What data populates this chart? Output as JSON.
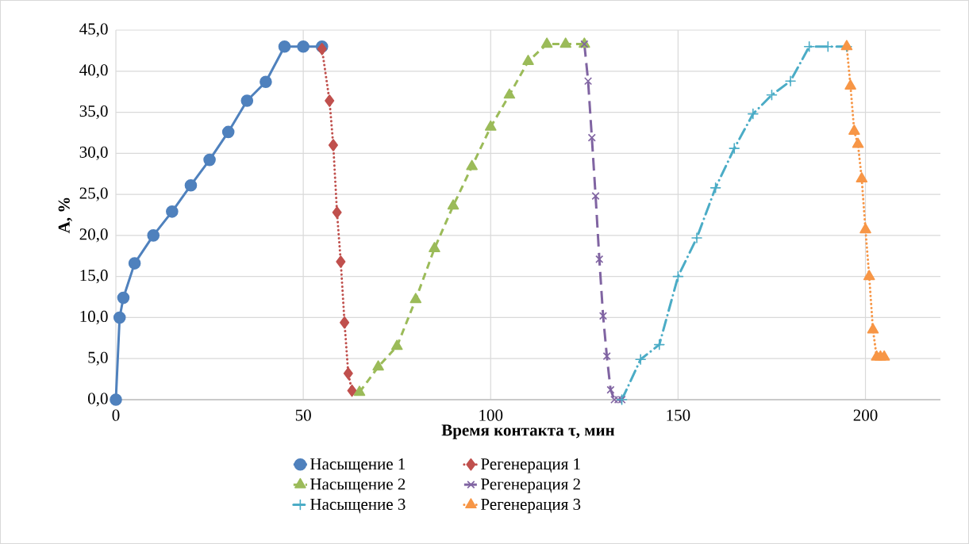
{
  "chart_data": {
    "type": "line",
    "xlabel": "Время контакта τ, мин",
    "ylabel": "А, %",
    "xlim": [
      0,
      220
    ],
    "xticks": [
      0,
      50,
      100,
      150,
      200
    ],
    "ylim": [
      0,
      45
    ],
    "yticks": [
      {
        "value": 0,
        "label": "0,0"
      },
      {
        "value": 5,
        "label": "5,0"
      },
      {
        "value": 10,
        "label": "10,0"
      },
      {
        "value": 15,
        "label": "15,0"
      },
      {
        "value": 20,
        "label": "20,0"
      },
      {
        "value": 25,
        "label": "25,0"
      },
      {
        "value": 30,
        "label": "30,0"
      },
      {
        "value": 35,
        "label": "35,0"
      },
      {
        "value": 40,
        "label": "40,0"
      },
      {
        "value": 45,
        "label": "45,0"
      }
    ],
    "grid": true,
    "legend": "bottom",
    "series": [
      {
        "name": "Насыщение 1",
        "color": "#4f81bd",
        "marker": "circle",
        "line_style": "solid",
        "x": [
          0,
          1,
          2,
          5,
          10,
          15,
          20,
          25,
          30,
          35,
          40,
          45,
          50,
          55
        ],
        "values": [
          0,
          10.0,
          12.4,
          16.6,
          20.0,
          22.9,
          26.1,
          29.2,
          32.6,
          36.4,
          38.7,
          43.0,
          43.0,
          43.0
        ]
      },
      {
        "name": "Регенерация 1",
        "color": "#c0504d",
        "marker": "diamond",
        "line_style": "dotted",
        "x": [
          55,
          57,
          58,
          59,
          60,
          61,
          62,
          63
        ],
        "values": [
          42.7,
          36.4,
          31.0,
          22.8,
          16.8,
          9.4,
          3.2,
          1.1
        ]
      },
      {
        "name": "Насыщение 2",
        "color": "#9bbb59",
        "marker": "triangle",
        "line_style": "dashed",
        "x": [
          65,
          70,
          75,
          80,
          85,
          90,
          95,
          100,
          105,
          110,
          115,
          120,
          125
        ],
        "values": [
          0.9,
          4.0,
          6.5,
          12.2,
          18.4,
          23.6,
          28.4,
          33.2,
          37.1,
          41.2,
          43.3,
          43.3,
          43.3
        ]
      },
      {
        "name": "Регенерация 2",
        "color": "#8064a2",
        "marker": "cross",
        "line_style": "longdashed",
        "x": [
          125,
          126,
          127,
          128,
          129,
          130,
          131,
          132,
          133,
          134,
          135
        ],
        "values": [
          43.3,
          38.8,
          31.9,
          24.8,
          17.1,
          10.2,
          5.3,
          1.2,
          0,
          0,
          0
        ]
      },
      {
        "name": "Насыщение 3",
        "color": "#4bacc6",
        "marker": "plus",
        "line_style": "dashdot",
        "x": [
          135,
          140,
          145,
          150,
          155,
          160,
          165,
          170,
          175,
          180,
          185,
          190,
          195
        ],
        "values": [
          0,
          4.9,
          6.7,
          15.0,
          19.7,
          25.8,
          30.6,
          34.8,
          37.1,
          38.8,
          43.0,
          43.0,
          43.0
        ]
      },
      {
        "name": "Регенерация 3",
        "color": "#f79646",
        "marker": "triangle",
        "line_style": "dotted",
        "x": [
          195,
          196,
          197,
          198,
          199,
          200,
          201,
          202,
          203,
          204,
          205
        ],
        "values": [
          43.0,
          38.2,
          32.7,
          31.1,
          26.9,
          20.7,
          15.0,
          8.5,
          5.2,
          5.2,
          5.2
        ]
      }
    ]
  }
}
